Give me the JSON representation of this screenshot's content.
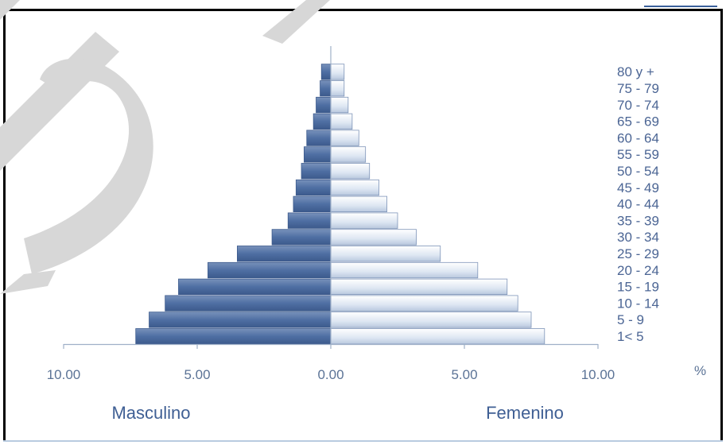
{
  "chart_data": {
    "type": "bar",
    "orientation": "horizontal",
    "categories": [
      "1< 5",
      "5 - 9",
      "10 - 14",
      "15 - 19",
      "20 - 24",
      "25 - 29",
      "30 - 34",
      "35 - 39",
      "40 - 44",
      "45 - 49",
      "50 - 54",
      "55 - 59",
      "60 - 64",
      "65 - 69",
      "70 - 74",
      "75 - 79",
      "80 y +"
    ],
    "series": [
      {
        "name": "Masculino",
        "values": [
          7.3,
          6.8,
          6.2,
          5.7,
          4.6,
          3.5,
          2.2,
          1.6,
          1.4,
          1.3,
          1.1,
          1.0,
          0.9,
          0.65,
          0.55,
          0.4,
          0.35
        ]
      },
      {
        "name": "Femenino",
        "values": [
          8.0,
          7.5,
          7.0,
          6.6,
          5.5,
          4.1,
          3.2,
          2.5,
          2.1,
          1.8,
          1.45,
          1.3,
          1.05,
          0.8,
          0.65,
          0.5,
          0.5
        ]
      }
    ],
    "xticks": [
      "10.00",
      "5.00",
      "0.00",
      "5.00",
      "10.00"
    ],
    "xlim": [
      -10,
      10
    ],
    "unit_label": "%",
    "legend": [
      "Masculino",
      "Femenino"
    ],
    "colors": {
      "male": "#4f6fa3",
      "female": "#dde6f2",
      "female_border": "#7e94b8",
      "axis": "#9fb0c8"
    },
    "grid": false
  }
}
